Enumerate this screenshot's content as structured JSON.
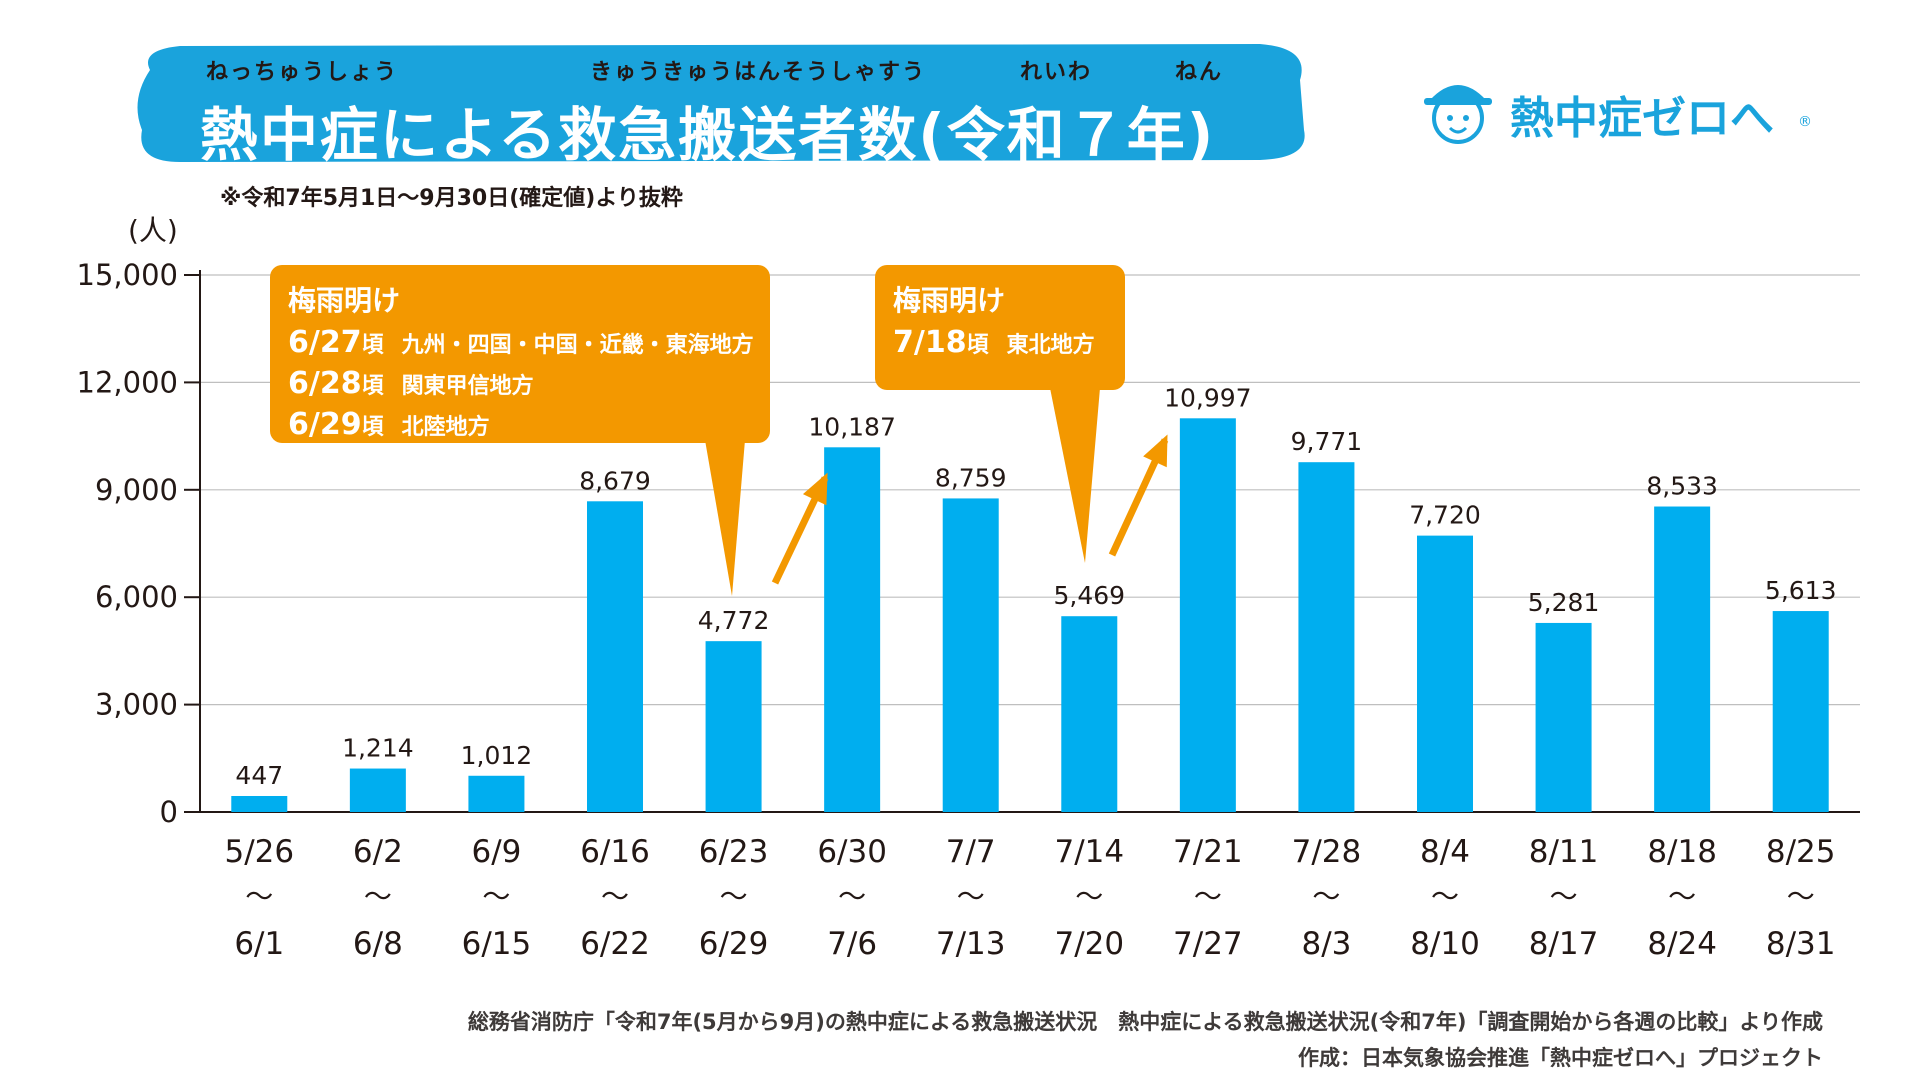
{
  "title": {
    "main": "熱中症による救急搬送者数(令和７年)",
    "ruby": [
      "ねっちゅうしょう",
      "きゅうきゅうはんそうしゃすう",
      "れいわ",
      "ねん"
    ]
  },
  "note": "※令和7年5月1日～9月30日(確定値)より抜粋",
  "logo": {
    "text": "熱中症ゼロへ",
    "reg": "®",
    "icon": "mascot-icon"
  },
  "colors": {
    "bar": "#00aeef",
    "title_bg": "#1aa3dc",
    "callout": "#f39800",
    "grid": "#bfbfbf"
  },
  "callouts": [
    {
      "title": "梅雨明け",
      "lines": [
        {
          "date": "6/27",
          "koro": "頃",
          "region": "九州・四国・中国・近畿・東海地方"
        },
        {
          "date": "6/28",
          "koro": "頃",
          "region": "関東甲信地方"
        },
        {
          "date": "6/29",
          "koro": "頃",
          "region": "北陸地方"
        }
      ]
    },
    {
      "title": "梅雨明け",
      "lines": [
        {
          "date": "7/18",
          "koro": "頃",
          "region": "東北地方"
        }
      ]
    }
  ],
  "chart_data": {
    "type": "bar",
    "title": "熱中症による救急搬送者数(令和７年)",
    "ylabel": "(人)",
    "ylim": [
      0,
      15000
    ],
    "yticks": [
      "0",
      "3,000",
      "6,000",
      "9,000",
      "12,000",
      "15,000"
    ],
    "ytick_values": [
      0,
      3000,
      6000,
      9000,
      12000,
      15000
    ],
    "grid": true,
    "categories": [
      [
        "5/26",
        "6/1"
      ],
      [
        "6/2",
        "6/8"
      ],
      [
        "6/9",
        "6/15"
      ],
      [
        "6/16",
        "6/22"
      ],
      [
        "6/23",
        "6/29"
      ],
      [
        "6/30",
        "7/6"
      ],
      [
        "7/7",
        "7/13"
      ],
      [
        "7/14",
        "7/20"
      ],
      [
        "7/21",
        "7/27"
      ],
      [
        "7/28",
        "8/3"
      ],
      [
        "8/4",
        "8/10"
      ],
      [
        "8/11",
        "8/17"
      ],
      [
        "8/18",
        "8/24"
      ],
      [
        "8/25",
        "8/31"
      ]
    ],
    "range_sep": "～",
    "values": [
      447,
      1214,
      1012,
      8679,
      4772,
      10187,
      8759,
      5469,
      10997,
      9771,
      7720,
      5281,
      8533,
      5613
    ],
    "value_labels": [
      "447",
      "1,214",
      "1,012",
      "8,679",
      "4,772",
      "10,187",
      "8,759",
      "5,469",
      "10,997",
      "9,771",
      "7,720",
      "5,281",
      "8,533",
      "5,613"
    ]
  },
  "footer": {
    "line1": "総務省消防庁「令和7年(5月から9月)の熱中症による救急搬送状況　熱中症による救急搬送状況(令和7年)「調査開始から各週の比較」より作成",
    "line2": "作成：日本気象協会推進「熱中症ゼロへ」プロジェクト"
  }
}
